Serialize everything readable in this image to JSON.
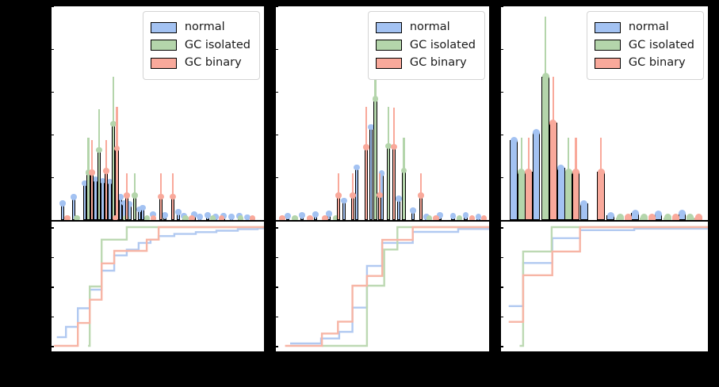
{
  "figure": {
    "background": "#000000",
    "panel_background": "#ffffff"
  },
  "legend": {
    "labels": [
      "normal",
      "GC isolated",
      "GC binary"
    ]
  },
  "colors": {
    "normal": "#a3c2f2",
    "gc_isolated": "#b4d5ab",
    "gc_binary": "#f9a99b",
    "bar_edge": "#000000",
    "cdf_normal": "#b1c9f1",
    "cdf_gc_isolated": "#bdd9b3",
    "cdf_gc_binary": "#f7b5a5",
    "legend_border": "#d4d4d4"
  },
  "chart_data": [
    {
      "type": "bar",
      "panel": "left",
      "subplots": [
        "histogram with error bars",
        "cdf step plot"
      ],
      "bar_width": 0.0168,
      "series": [
        {
          "name": "normal",
          "color": "#a3c2f2",
          "bars": [
            [
              0.052,
              0.077,
              0
            ],
            [
              0.105,
              0.107,
              0
            ],
            [
              0.157,
              0.173,
              0
            ],
            [
              0.207,
              0.19,
              0
            ],
            [
              0.241,
              0.183,
              0
            ],
            [
              0.274,
              0.18,
              0
            ],
            [
              0.325,
              0.107,
              0
            ],
            [
              0.341,
              0.08,
              0
            ],
            [
              0.368,
              0.075,
              0
            ],
            [
              0.414,
              0.05,
              0
            ],
            [
              0.429,
              0.058,
              0
            ],
            [
              0.478,
              0.026,
              0
            ],
            [
              0.534,
              0.022,
              0
            ],
            [
              0.597,
              0.037,
              0
            ],
            [
              0.623,
              0.018,
              0
            ],
            [
              0.672,
              0.026,
              0
            ],
            [
              0.698,
              0.015,
              0
            ],
            [
              0.735,
              0.022,
              0
            ],
            [
              0.772,
              0.015,
              0
            ],
            [
              0.81,
              0.018,
              0
            ],
            [
              0.847,
              0.015,
              0
            ],
            [
              0.884,
              0.018,
              0
            ],
            [
              0.922,
              0.013,
              0
            ]
          ]
        },
        {
          "name": "GC isolated",
          "color": "#b4d5ab",
          "bars": [
            [
              0.174,
              0.223,
              0.385
            ],
            [
              0.224,
              0.328,
              0.52
            ],
            [
              0.291,
              0.45,
              0.672
            ],
            [
              0.392,
              0.115,
              0.218
            ],
            [
              0.12,
              0.01,
              0
            ],
            [
              0.35,
              0.01,
              0
            ],
            [
              0.45,
              0.008,
              0
            ],
            [
              0.63,
              0.008,
              0
            ],
            [
              0.76,
              0.008,
              0
            ],
            [
              0.89,
              0.008,
              0
            ]
          ]
        },
        {
          "name": "GC binary",
          "color": "#f9a99b",
          "bars": [
            [
              0.19,
              0.223,
              0.374
            ],
            [
              0.257,
              0.229,
              0.374
            ],
            [
              0.308,
              0.336,
              0.53
            ],
            [
              0.354,
              0.115,
              0.218
            ],
            [
              0.515,
              0.11,
              0.218
            ],
            [
              0.571,
              0.11,
              0.218
            ],
            [
              0.075,
              0.01,
              0
            ],
            [
              0.3,
              0.01,
              0
            ],
            [
              0.48,
              0.008,
              0
            ],
            [
              0.66,
              0.008,
              0
            ],
            [
              0.8,
              0.008,
              0
            ],
            [
              0.945,
              0.008,
              0
            ]
          ]
        }
      ],
      "cdf": [
        {
          "name": "normal",
          "color": "#b1c9f1",
          "points": [
            [
              0.025,
              0.073
            ],
            [
              0.068,
              0.16
            ],
            [
              0.124,
              0.317
            ],
            [
              0.18,
              0.473
            ],
            [
              0.236,
              0.633
            ],
            [
              0.295,
              0.762
            ],
            [
              0.354,
              0.81
            ],
            [
              0.41,
              0.867
            ],
            [
              0.466,
              0.895
            ],
            [
              0.504,
              0.925
            ],
            [
              0.578,
              0.943
            ],
            [
              0.679,
              0.958
            ],
            [
              0.776,
              0.97
            ],
            [
              0.877,
              0.983
            ],
            [
              0.97,
              0.99
            ]
          ]
        },
        {
          "name": "GC isolated",
          "color": "#bdd9b3",
          "points": [
            [
              0.172,
              0.0
            ],
            [
              0.18,
              0.5
            ],
            [
              0.236,
              0.895
            ],
            [
              0.354,
              1.0
            ]
          ]
        },
        {
          "name": "GC binary",
          "color": "#f7b5a5",
          "points": [
            [
              0.012,
              0.0
            ],
            [
              0.124,
              0.193
            ],
            [
              0.18,
              0.389
            ],
            [
              0.236,
              0.695
            ],
            [
              0.295,
              0.8
            ],
            [
              0.448,
              0.895
            ],
            [
              0.504,
              1.0
            ]
          ]
        }
      ]
    },
    {
      "type": "bar",
      "panel": "middle",
      "subplots": [
        "histogram with error bars",
        "cdf step plot"
      ],
      "bar_width": 0.0167,
      "series": [
        {
          "name": "normal",
          "color": "#a3c2f2",
          "bars": [
            [
              0.055,
              0.018,
              0
            ],
            [
              0.122,
              0.022,
              0
            ],
            [
              0.185,
              0.026,
              0
            ],
            [
              0.249,
              0.03,
              0
            ],
            [
              0.32,
              0.09,
              0
            ],
            [
              0.379,
              0.247,
              0
            ],
            [
              0.446,
              0.435,
              0
            ],
            [
              0.497,
              0.218,
              0
            ],
            [
              0.576,
              0.1,
              0
            ],
            [
              0.643,
              0.044,
              0
            ],
            [
              0.706,
              0.015,
              0
            ],
            [
              0.77,
              0.022,
              0
            ],
            [
              0.83,
              0.018,
              0
            ],
            [
              0.89,
              0.022,
              0
            ],
            [
              0.95,
              0.015,
              0
            ]
          ]
        },
        {
          "name": "GC isolated",
          "color": "#b4d5ab",
          "bars": [
            [
              0.467,
              0.567,
              0.82
            ],
            [
              0.527,
              0.347,
              0.53
            ],
            [
              0.601,
              0.232,
              0.385
            ],
            [
              0.09,
              0.008,
              0
            ],
            [
              0.28,
              0.008,
              0
            ],
            [
              0.72,
              0.008,
              0
            ],
            [
              0.86,
              0.008,
              0
            ]
          ]
        },
        {
          "name": "GC binary",
          "color": "#f9a99b",
          "bars": [
            [
              0.294,
              0.114,
              0.218
            ],
            [
              0.361,
              0.115,
              0.218
            ],
            [
              0.423,
              0.34,
              0.53
            ],
            [
              0.487,
              0.117,
              0.218
            ],
            [
              0.554,
              0.343,
              0.527
            ],
            [
              0.681,
              0.114,
              0.218
            ],
            [
              0.03,
              0.008,
              0
            ],
            [
              0.16,
              0.008,
              0
            ],
            [
              0.23,
              0.008,
              0
            ],
            [
              0.75,
              0.008,
              0
            ],
            [
              0.92,
              0.008,
              0
            ],
            [
              0.975,
              0.008,
              0
            ]
          ]
        }
      ],
      "cdf": [
        {
          "name": "normal",
          "color": "#b1c9f1",
          "points": [
            [
              0.067,
              0.02
            ],
            [
              0.212,
              0.062
            ],
            [
              0.297,
              0.118
            ],
            [
              0.359,
              0.322
            ],
            [
              0.427,
              0.673
            ],
            [
              0.498,
              0.867
            ],
            [
              0.642,
              0.96
            ],
            [
              0.855,
              0.985
            ]
          ]
        },
        {
          "name": "GC isolated",
          "color": "#bdd9b3",
          "points": [
            [
              0.216,
              0.0
            ],
            [
              0.427,
              0.507
            ],
            [
              0.508,
              0.811
            ],
            [
              0.57,
              1.0
            ]
          ]
        },
        {
          "name": "GC binary",
          "color": "#f7b5a5",
          "points": [
            [
              0.043,
              0.0
            ],
            [
              0.216,
              0.104
            ],
            [
              0.291,
              0.204
            ],
            [
              0.359,
              0.507
            ],
            [
              0.427,
              0.589
            ],
            [
              0.499,
              0.893
            ],
            [
              0.642,
              1.0
            ]
          ]
        }
      ]
    },
    {
      "type": "bar",
      "panel": "right",
      "subplots": [
        "histogram with error bars",
        "cdf step plot"
      ],
      "bar_width": 0.0372,
      "series": [
        {
          "name": "normal",
          "color": "#a3c2f2",
          "bars": [
            [
              0.062,
              0.373,
              0
            ],
            [
              0.171,
              0.41,
              0
            ],
            [
              0.29,
              0.243,
              0
            ],
            [
              0.401,
              0.077,
              0
            ],
            [
              0.53,
              0.022,
              0
            ],
            [
              0.648,
              0.033,
              0
            ],
            [
              0.76,
              0.026,
              0
            ],
            [
              0.876,
              0.03,
              0
            ]
          ]
        },
        {
          "name": "GC isolated",
          "color": "#b4d5ab",
          "bars": [
            [
              0.099,
              0.225,
              0.385
            ],
            [
              0.215,
              0.672,
              0.952
            ],
            [
              0.326,
              0.225,
              0.385
            ],
            [
              0.575,
              0.012,
              0
            ],
            [
              0.69,
              0.012,
              0
            ],
            [
              0.805,
              0.012,
              0
            ],
            [
              0.915,
              0.012,
              0
            ]
          ]
        },
        {
          "name": "GC binary",
          "color": "#f9a99b",
          "bars": [
            [
              0.134,
              0.225,
              0.385
            ],
            [
              0.252,
              0.454,
              0.672
            ],
            [
              0.362,
              0.225,
              0.385
            ],
            [
              0.483,
              0.225,
              0.385
            ],
            [
              0.615,
              0.012,
              0
            ],
            [
              0.73,
              0.012,
              0
            ],
            [
              0.845,
              0.012,
              0
            ],
            [
              0.955,
              0.012,
              0
            ]
          ]
        }
      ],
      "cdf": [
        {
          "name": "normal",
          "color": "#b1c9f1",
          "points": [
            [
              0.037,
              0.335
            ],
            [
              0.107,
              0.698
            ],
            [
              0.248,
              0.907
            ],
            [
              0.382,
              0.975
            ],
            [
              0.644,
              0.987
            ]
          ]
        },
        {
          "name": "GC isolated",
          "color": "#bdd9b3",
          "points": [
            [
              0.09,
              0.0
            ],
            [
              0.107,
              0.795
            ],
            [
              0.245,
              1.0
            ]
          ]
        },
        {
          "name": "GC binary",
          "color": "#f7b5a5",
          "points": [
            [
              0.037,
              0.202
            ],
            [
              0.107,
              0.595
            ],
            [
              0.248,
              0.795
            ],
            [
              0.382,
              1.0
            ]
          ]
        }
      ]
    }
  ],
  "layout_note_visible_text_only": "Axis tick labels are not visible (black text on black background); only legend labels are visible."
}
